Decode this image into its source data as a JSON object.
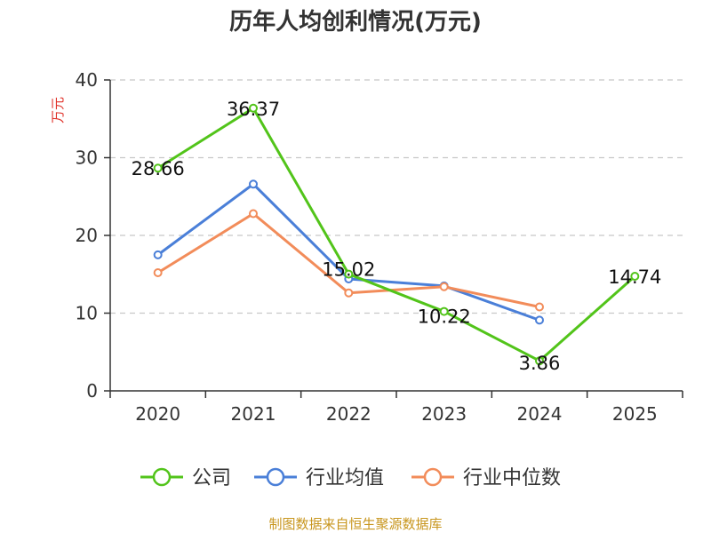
{
  "chart_data": {
    "type": "line",
    "title": "历年人均创利情况(万元)",
    "ylabel": "万元",
    "xlabel": "",
    "ylim": [
      0,
      40
    ],
    "yticks": [
      0,
      10,
      20,
      30,
      40
    ],
    "grid": true,
    "legend_position": "bottom",
    "categories": [
      "2020",
      "2021",
      "2022",
      "2023",
      "2024",
      "2025"
    ],
    "series": [
      {
        "name": "公司",
        "color": "#52c41a",
        "values": [
          28.66,
          36.37,
          15.02,
          10.22,
          3.86,
          14.74
        ],
        "labels": [
          "28.66",
          "36.37",
          "15.02",
          "10.22",
          "3.86",
          "14.74"
        ]
      },
      {
        "name": "行业均值",
        "color": "#4a7fd8",
        "values": [
          17.5,
          26.6,
          14.4,
          13.5,
          9.1,
          null
        ]
      },
      {
        "name": "行业中位数",
        "color": "#f28c5a",
        "values": [
          15.2,
          22.8,
          12.6,
          13.4,
          10.8,
          null
        ]
      }
    ],
    "source": "制图数据来自恒生聚源数据库"
  }
}
